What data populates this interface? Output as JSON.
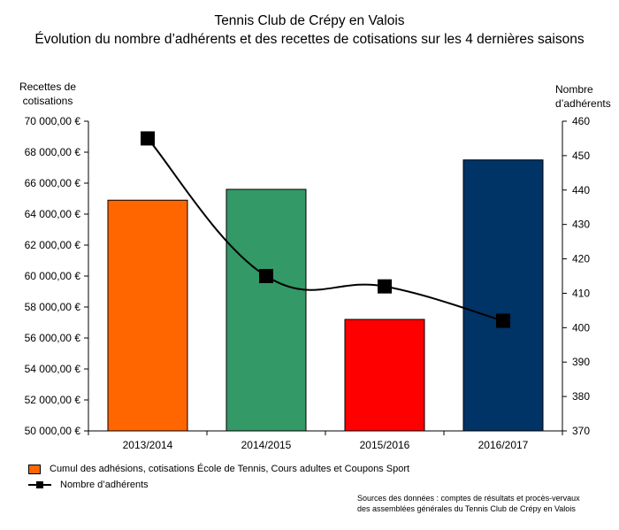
{
  "title": "Tennis Club de Crépy en Valois",
  "subtitle": "Évolution du nombre d’adhérents et des recettes de cotisations sur les 4 dernières saisons",
  "left_axis_label": "Recettes de\ncotisations",
  "right_axis_label": "Nombre\nd’adhérents",
  "legend": {
    "bars": "Cumul des adhésions, cotisations École de Tennis, Cours adultes et Coupons Sport",
    "line": "Nombre d’adhérents"
  },
  "source": "Sources des données : comptes de résultats et procès-vervaux\ndes assemblées générales du Tennis Club de Crépy en Valois",
  "chart_data": {
    "type": "bar",
    "categories": [
      "2013/2014",
      "2014/2015",
      "2015/2016",
      "2016/2017"
    ],
    "series": [
      {
        "type": "bar",
        "axis": "left",
        "values": [
          64900,
          65600,
          57200,
          67500
        ],
        "colors": [
          "#ff6600",
          "#339966",
          "#ff0000",
          "#003366"
        ]
      },
      {
        "type": "line",
        "axis": "right",
        "values": [
          455,
          415,
          412,
          402
        ],
        "color": "#000000",
        "marker": "square",
        "smooth": true
      }
    ],
    "left_axis": {
      "ylim": [
        50000,
        70000
      ],
      "ticks": [
        "50 000,00 €",
        "52 000,00 €",
        "54 000,00 €",
        "56 000,00 €",
        "58 000,00 €",
        "60 000,00 €",
        "62 000,00 €",
        "64 000,00 €",
        "66 000,00 €",
        "68 000,00 €",
        "70 000,00 €"
      ]
    },
    "right_axis": {
      "ylim": [
        370,
        460
      ],
      "ticks": [
        "370",
        "380",
        "390",
        "400",
        "410",
        "420",
        "430",
        "440",
        "450",
        "460"
      ]
    },
    "grid": false,
    "legend_position": "bottom-left"
  }
}
